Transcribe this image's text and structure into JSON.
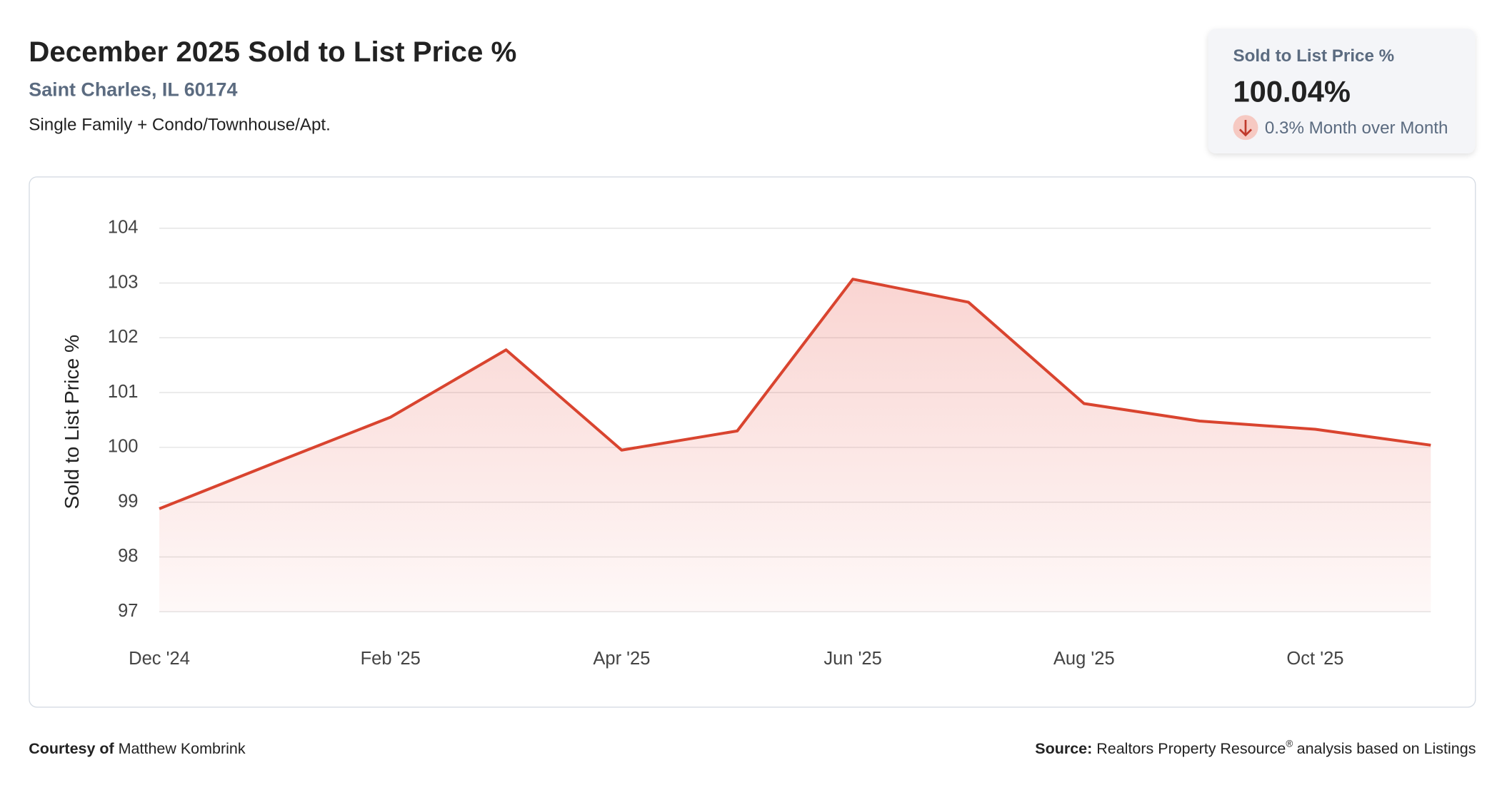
{
  "header": {
    "title": "December 2025 Sold to List Price %",
    "location": "Saint Charles, IL 60174",
    "property_types": "Single Family + Condo/Townhouse/Apt."
  },
  "kpi": {
    "label": "Sold to List Price %",
    "value": "100.04%",
    "change": "0.3% Month over Month"
  },
  "chart_data": {
    "type": "line",
    "y_label": "Sold to List Price %",
    "categories": [
      "Dec '24",
      null,
      "Feb '25",
      null,
      "Apr '25",
      null,
      "Jun '25",
      null,
      "Aug '25",
      null,
      "Oct '25",
      null
    ],
    "values": [
      98.88,
      99.72,
      100.55,
      101.78,
      99.95,
      100.3,
      103.07,
      102.65,
      100.8,
      100.48,
      100.33,
      100.04
    ],
    "color": "#d9442f",
    "ylim": [
      97,
      104
    ],
    "yticks": [
      97,
      98,
      99,
      100,
      101,
      102,
      103,
      104
    ],
    "grid": true,
    "area": true
  },
  "footer": {
    "courtesy_label": "Courtesy of",
    "courtesy_name": "Matthew Kombrink",
    "source_label": "Source:",
    "source_text": "Realtors Property Resource",
    "source_mark": "®",
    "source_suffix": "analysis based on Listings"
  }
}
